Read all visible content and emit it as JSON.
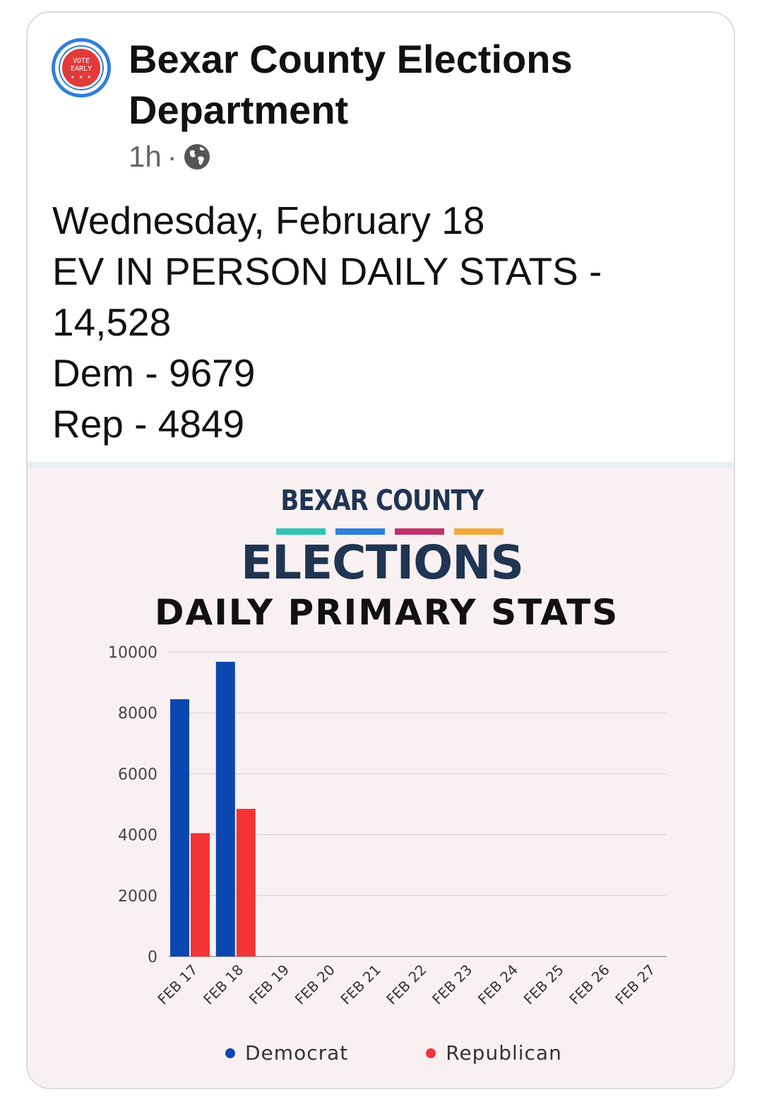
{
  "post": {
    "page_name": "Bexar County Elections Department",
    "timestamp": "1h",
    "separator": "·",
    "avatar_text": [
      "VOTE",
      "EARLY",
      "★ ★ ★"
    ],
    "lines": [
      "Wednesday, February 18",
      "EV IN PERSON DAILY STATS -",
      "14,528",
      "Dem - 9679",
      "Rep - 4849"
    ]
  },
  "image": {
    "brand_top": "BEXAR COUNTY",
    "brand_main": "ELECTIONS",
    "subtitle": "DAILY PRIMARY STATS",
    "dash_colors": [
      "#2ec4b6",
      "#2f7fdc",
      "#c2306a",
      "#f2a93b"
    ]
  },
  "colors": {
    "democrat": "#0a47b0",
    "republican": "#f23434",
    "brand": "#1f3552"
  },
  "icons": {
    "globe": "globe-icon",
    "avatar": "vote-early-logo"
  },
  "chart_data": {
    "type": "bar",
    "categories": [
      "FEB 17",
      "FEB 18",
      "FEB 19",
      "FEB 20",
      "FEB 21",
      "FEB 22",
      "FEB 23",
      "FEB 24",
      "FEB 25",
      "FEB 26",
      "FEB 27"
    ],
    "series": [
      {
        "name": "Democrat",
        "values": [
          8450,
          9679,
          null,
          null,
          null,
          null,
          null,
          null,
          null,
          null,
          null
        ]
      },
      {
        "name": "Republican",
        "values": [
          4050,
          4849,
          null,
          null,
          null,
          null,
          null,
          null,
          null,
          null,
          null
        ]
      }
    ],
    "yticks": [
      0,
      2000,
      4000,
      6000,
      8000,
      10000
    ],
    "ylim": [
      0,
      10000
    ],
    "grid": true,
    "legend_position": "bottom"
  }
}
